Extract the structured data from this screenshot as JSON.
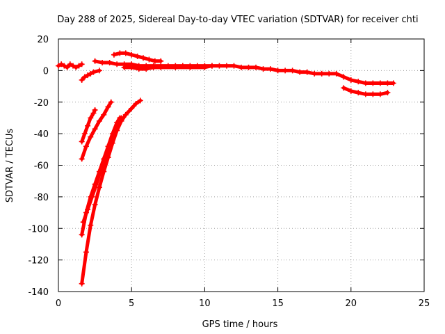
{
  "chart_data": {
    "type": "scatter",
    "title": "Day 288 of 2025, Sidereal Day-to-day VTEC variation (SDTVAR) for receiver chti",
    "xlabel": "GPS time / hours",
    "ylabel": "SDTVAR / TECUs",
    "xlim": [
      0,
      25
    ],
    "ylim": [
      -140,
      20
    ],
    "x_ticks": [
      0,
      5,
      10,
      15,
      20,
      25
    ],
    "y_ticks": [
      -140,
      -120,
      -100,
      -80,
      -60,
      -40,
      -20,
      0,
      20
    ],
    "x_tick_labels": [
      "0",
      "5",
      "10",
      "15",
      "20",
      "25"
    ],
    "y_tick_labels": [
      "-140",
      "-120",
      "-100",
      "-80",
      "-60",
      "-40",
      "-20",
      "0",
      "20"
    ],
    "grid": true,
    "marker": "plus",
    "color": "#ff0000",
    "series": [
      {
        "x": [
          0,
          0.2,
          0.4,
          0.6,
          0.8,
          1.0,
          1.2,
          1.4,
          1.6
        ],
        "y": [
          3,
          4,
          3,
          2,
          4,
          3,
          2,
          3,
          4
        ]
      },
      {
        "x": [
          1.6,
          1.8,
          2.0,
          2.2,
          2.4,
          2.8
        ],
        "y": [
          -6,
          -4,
          -3,
          -2,
          -1,
          0
        ]
      },
      {
        "x": [
          2.5,
          3.0,
          3.5,
          4.0,
          4.5,
          5.0,
          5.5,
          6.0,
          6.5,
          7.0,
          7.5,
          8.0,
          8.5,
          9.0,
          9.5,
          10.0,
          10.5,
          11.0,
          11.5,
          12.0,
          12.5,
          13.0,
          13.5,
          14.0,
          14.5,
          15.0,
          15.5,
          16.0,
          16.5,
          17.0,
          17.5,
          18.0,
          18.5,
          19.0,
          19.5,
          20.0,
          20.5,
          21.0,
          21.5,
          22.0,
          22.5,
          22.9
        ],
        "y": [
          6,
          5,
          5,
          4,
          4,
          4,
          3,
          3,
          3,
          3,
          3,
          3,
          3,
          3,
          3,
          3,
          3,
          3,
          3,
          3,
          2,
          2,
          2,
          1,
          1,
          0,
          0,
          0,
          -1,
          -1,
          -2,
          -2,
          -2,
          -2,
          -4,
          -6,
          -7,
          -8,
          -8,
          -8,
          -8,
          -8
        ]
      },
      {
        "x": [
          3.8,
          4.2,
          4.6,
          5.0,
          5.4,
          5.8,
          6.2,
          6.6,
          7.0
        ],
        "y": [
          10,
          11,
          11,
          10,
          9,
          8,
          7,
          6,
          6
        ]
      },
      {
        "x": [
          4.5,
          5.0,
          5.5,
          6.0,
          6.5,
          7.0,
          8.0,
          9.0,
          10.0,
          10.5
        ],
        "y": [
          2,
          2,
          1,
          1,
          2,
          2,
          2,
          2,
          2,
          3
        ]
      },
      {
        "x": [
          19.5,
          20.0,
          20.5,
          21.0,
          21.5,
          22.0,
          22.5
        ],
        "y": [
          -11,
          -13,
          -14,
          -15,
          -15,
          -15,
          -14
        ]
      },
      {
        "x": [
          1.6,
          1.8,
          2.0,
          2.2,
          2.4,
          2.5
        ],
        "y": [
          -45,
          -40,
          -35,
          -30,
          -27,
          -25
        ]
      },
      {
        "x": [
          1.6,
          1.9,
          2.2,
          2.5,
          2.8,
          3.1,
          3.4,
          3.6
        ],
        "y": [
          -56,
          -48,
          -42,
          -37,
          -32,
          -28,
          -23,
          -20
        ]
      },
      {
        "x": [
          1.6,
          1.9,
          2.2,
          2.5,
          2.8,
          3.1,
          3.4,
          3.7,
          4.0,
          4.2
        ],
        "y": [
          -104,
          -90,
          -80,
          -72,
          -64,
          -56,
          -48,
          -40,
          -33,
          -30
        ]
      },
      {
        "x": [
          1.6,
          1.9,
          2.2,
          2.5,
          2.8,
          3.1,
          3.4,
          3.7,
          4.0,
          4.3,
          4.6,
          5.0,
          5.3,
          5.6
        ],
        "y": [
          -135,
          -115,
          -98,
          -85,
          -74,
          -64,
          -55,
          -46,
          -38,
          -32,
          -28,
          -24,
          -21,
          -19
        ]
      },
      {
        "x": [
          1.7,
          2.0,
          2.3,
          2.6,
          2.9,
          3.2,
          3.5,
          3.8,
          4.1,
          4.3
        ],
        "y": [
          -96,
          -88,
          -80,
          -72,
          -63,
          -55,
          -47,
          -40,
          -34,
          -30
        ]
      }
    ]
  }
}
